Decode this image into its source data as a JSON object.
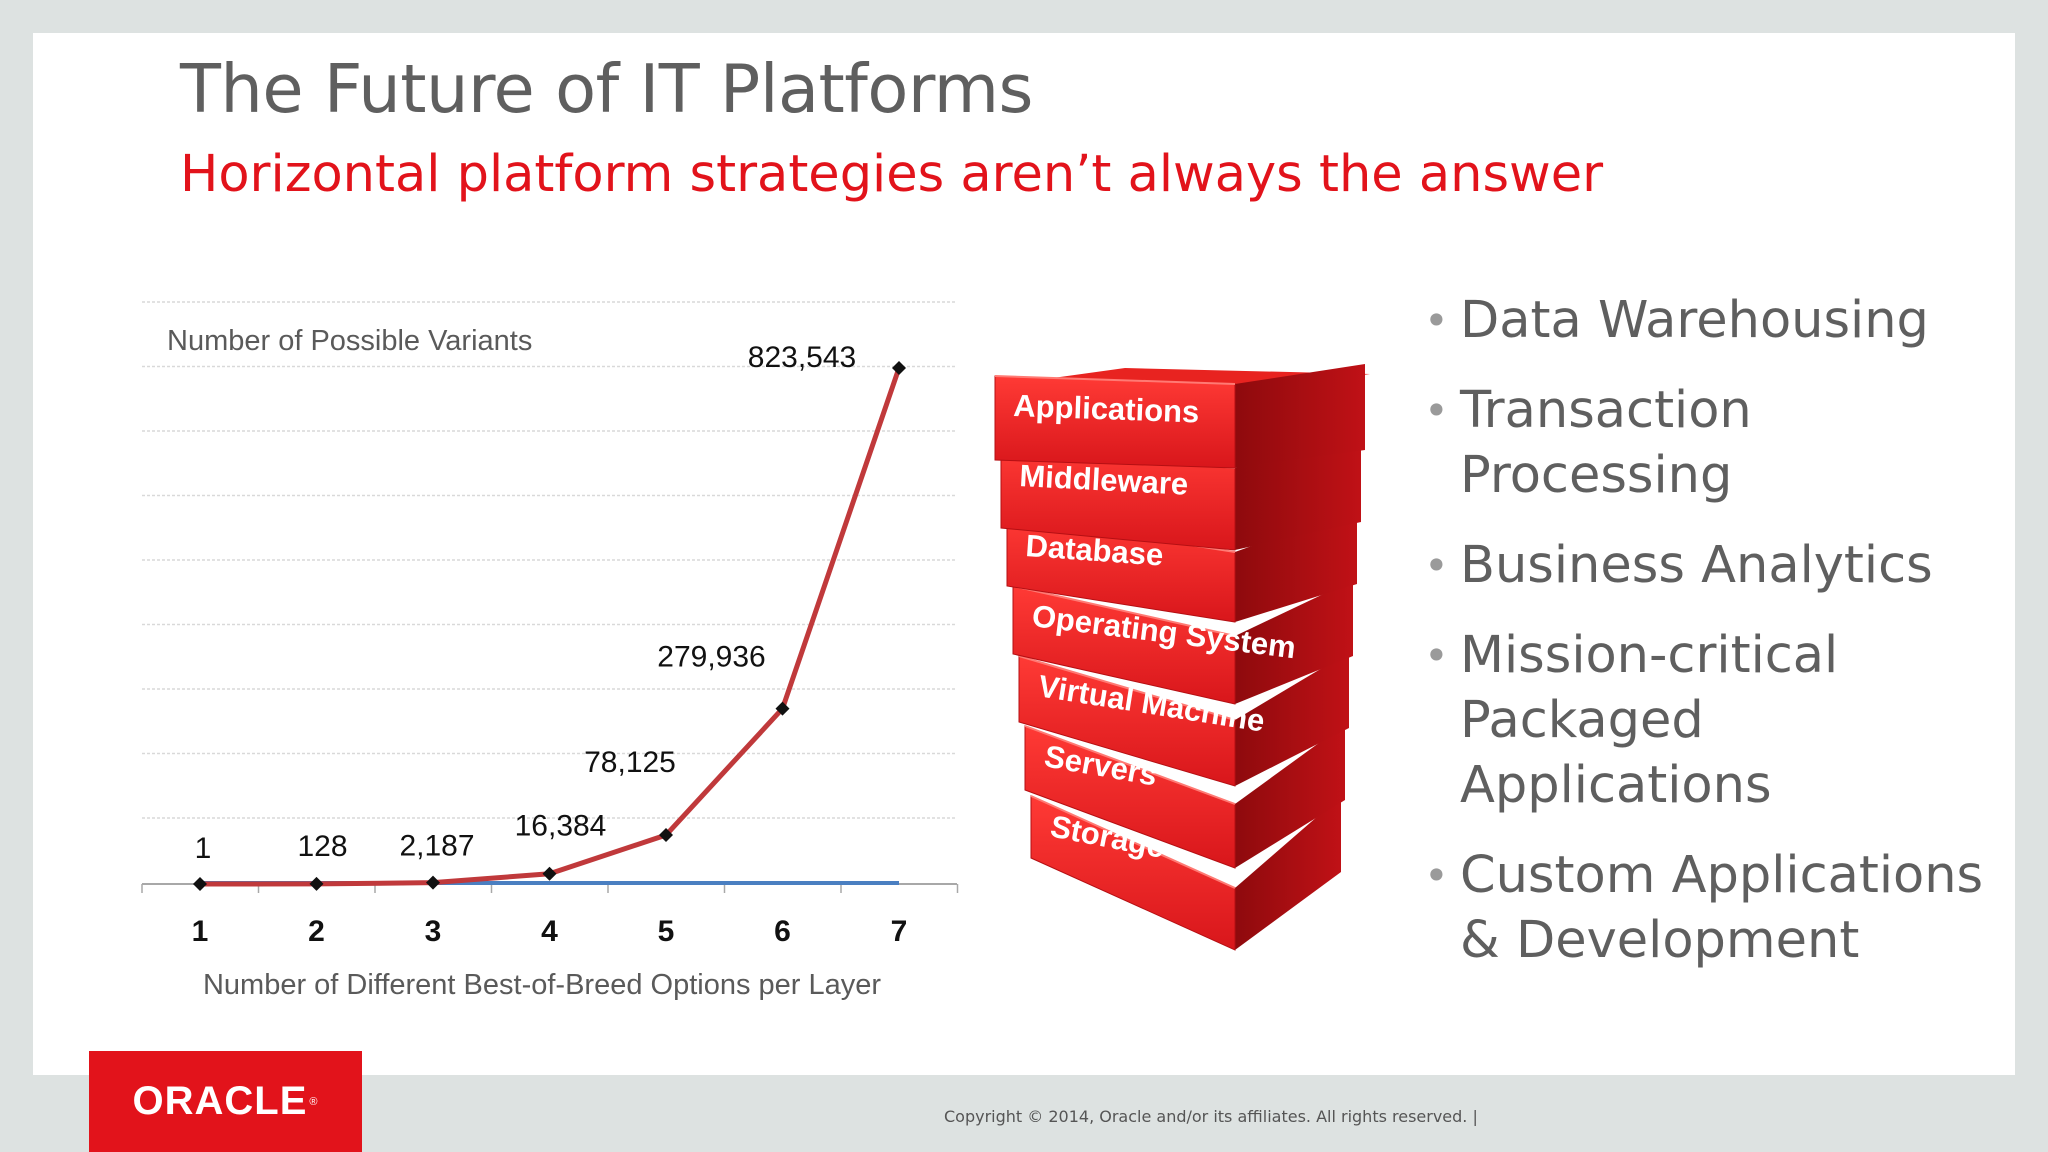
{
  "slide": {
    "title": "The Future of IT Platforms",
    "subtitle": "Horizontal platform strategies aren’t always the answer",
    "copyright": "Copyright © 2014, Oracle and/or its affiliates. All rights reserved.  |",
    "logo_text": "ORACLE",
    "logo_mark": "®"
  },
  "stack": {
    "layers": [
      "Applications",
      "Middleware",
      "Database",
      "Operating System",
      "Virtual Machine",
      "Servers",
      "Storage"
    ]
  },
  "bullets": [
    "Data Warehousing",
    "Transaction Processing",
    "Business Analytics",
    "Mission-critical Packaged Applications",
    "Custom Applications & Development"
  ],
  "colors": {
    "accent": "#e2131b",
    "series_red": "#c0393b",
    "series_blue": "#4a7fc1"
  },
  "chart_data": {
    "type": "line",
    "title": "Number of Possible Variants",
    "xlabel": "Number of Different Best-of-Breed Options per Layer",
    "ylabel": "",
    "categories": [
      "1",
      "2",
      "3",
      "4",
      "5",
      "6",
      "7"
    ],
    "data_labels": [
      "1",
      "128",
      "2,187",
      "16,384",
      "78,125",
      "279,936",
      "823,543"
    ],
    "series": [
      {
        "values": [
          1,
          128,
          2187,
          16384,
          78125,
          279936,
          823543
        ],
        "color": "#c0393b"
      },
      {
        "values": [
          1,
          2,
          3,
          4,
          5,
          6,
          7
        ],
        "color": "#4a7fc1"
      }
    ],
    "ylim": [
      0,
      850000
    ],
    "grid": true
  }
}
